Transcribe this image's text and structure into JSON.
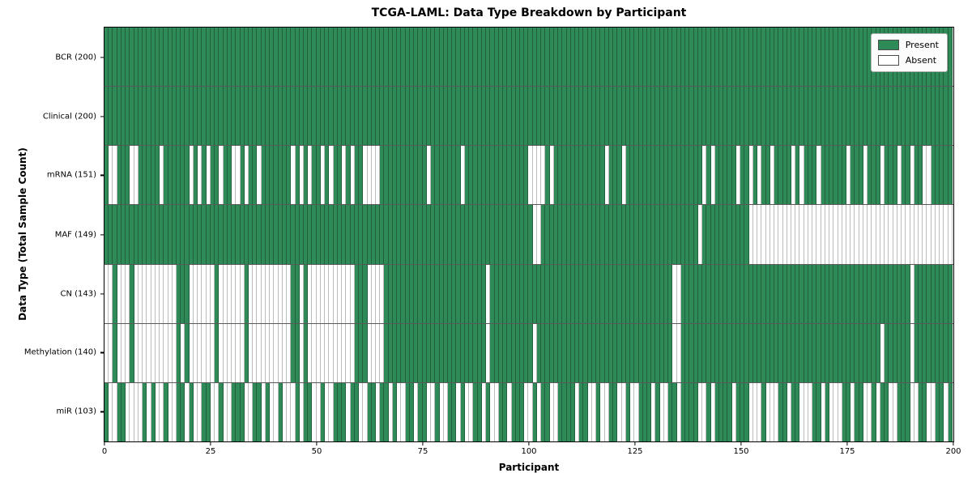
{
  "chart_data": {
    "type": "heatmap",
    "title": "TCGA-LAML: Data Type Breakdown by Participant",
    "xlabel": "Participant",
    "ylabel": "Data Type (Total Sample Count)",
    "x_range": [
      0,
      200
    ],
    "x_ticks": [
      0,
      25,
      50,
      75,
      100,
      125,
      150,
      175,
      200
    ],
    "n_participants": 200,
    "grid": false,
    "legend_position": "upper right",
    "legend": [
      {
        "label": "Present",
        "color": "#2e8b57"
      },
      {
        "label": "Absent",
        "color": "#ffffff"
      }
    ],
    "colors": {
      "present_fill": "#2e8b57",
      "present_edge": "#215f3d",
      "absent_fill": "#ffffff",
      "absent_edge": "#bcbcbc",
      "row_separator": "#000000"
    },
    "rows": [
      {
        "label": "BCR (200)",
        "data_type": "BCR",
        "present_count": 200,
        "absent_indices": []
      },
      {
        "label": "Clinical (200)",
        "data_type": "Clinical",
        "present_count": 200,
        "absent_indices": []
      },
      {
        "label": "mRNA (151)",
        "data_type": "mRNA",
        "present_count": 151,
        "absent_indices": [
          1,
          2,
          6,
          7,
          13,
          20,
          22,
          24,
          27,
          30,
          31,
          33,
          36,
          44,
          46,
          48,
          51,
          53,
          56,
          58,
          61,
          62,
          63,
          64,
          76,
          84,
          100,
          101,
          102,
          103,
          105,
          118,
          122,
          141,
          143,
          149,
          152,
          154,
          157,
          162,
          164,
          168,
          175,
          179,
          183,
          187,
          190,
          193,
          194
        ]
      },
      {
        "label": "MAF (149)",
        "data_type": "MAF",
        "present_count": 149,
        "absent_indices": [
          101,
          102,
          140,
          152,
          153,
          154,
          155,
          156,
          157,
          158,
          159,
          160,
          161,
          162,
          163,
          164,
          165,
          166,
          167,
          168,
          169,
          170,
          171,
          172,
          173,
          174,
          175,
          176,
          177,
          178,
          179,
          180,
          181,
          182,
          183,
          184,
          185,
          186,
          187,
          188,
          189,
          190,
          191,
          192,
          193,
          194,
          195,
          196,
          197,
          198,
          199
        ]
      },
      {
        "label": "CN (143)",
        "data_type": "CN",
        "present_count": 143,
        "absent_indices": [
          0,
          1,
          3,
          4,
          5,
          7,
          8,
          9,
          10,
          11,
          12,
          13,
          14,
          15,
          16,
          20,
          21,
          22,
          23,
          24,
          25,
          27,
          28,
          29,
          30,
          31,
          32,
          34,
          35,
          36,
          37,
          38,
          39,
          40,
          41,
          42,
          43,
          46,
          48,
          49,
          50,
          51,
          52,
          53,
          54,
          55,
          56,
          57,
          58,
          62,
          63,
          64,
          65,
          90,
          134,
          135,
          190
        ]
      },
      {
        "label": "Methylation (140)",
        "data_type": "Methylation",
        "present_count": 140,
        "absent_indices": [
          0,
          1,
          3,
          4,
          5,
          7,
          8,
          9,
          10,
          11,
          12,
          13,
          14,
          15,
          16,
          18,
          20,
          21,
          22,
          23,
          24,
          25,
          27,
          28,
          29,
          30,
          31,
          32,
          34,
          35,
          36,
          37,
          38,
          39,
          40,
          41,
          42,
          43,
          46,
          48,
          49,
          50,
          51,
          52,
          53,
          54,
          55,
          56,
          57,
          58,
          62,
          63,
          64,
          65,
          90,
          101,
          134,
          135,
          183,
          190
        ]
      },
      {
        "label": "miR (103)",
        "data_type": "miR",
        "present_count": 103,
        "absent_indices": [
          1,
          2,
          5,
          6,
          7,
          8,
          10,
          12,
          13,
          15,
          16,
          19,
          21,
          22,
          25,
          26,
          28,
          29,
          33,
          34,
          37,
          39,
          40,
          42,
          43,
          44,
          46,
          49,
          50,
          52,
          53,
          57,
          60,
          61,
          64,
          67,
          69,
          70,
          73,
          76,
          77,
          79,
          80,
          83,
          85,
          86,
          89,
          91,
          92,
          95,
          99,
          100,
          102,
          105,
          106,
          111,
          114,
          115,
          117,
          118,
          121,
          122,
          124,
          125,
          129,
          131,
          132,
          135,
          140,
          141,
          143,
          148,
          152,
          153,
          154,
          156,
          157,
          158,
          161,
          164,
          165,
          166,
          169,
          171,
          172,
          173,
          176,
          179,
          180,
          182,
          185,
          186,
          190,
          191,
          194,
          195,
          198
        ]
      }
    ]
  }
}
